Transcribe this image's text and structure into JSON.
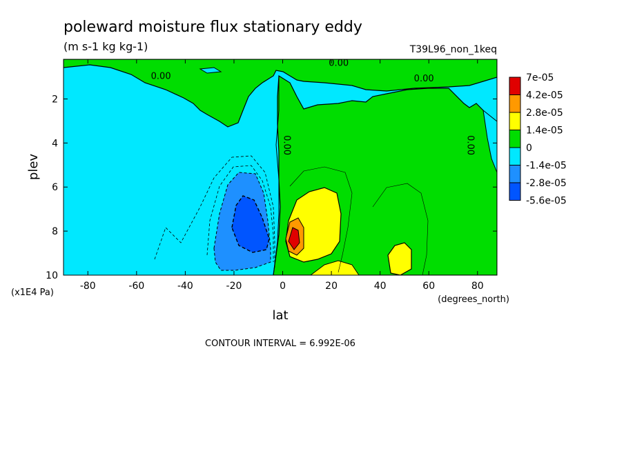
{
  "chart_data": {
    "type": "heatmap",
    "title": "poleward moisture flux stationary eddy",
    "units": "(m s-1 kg kg-1)",
    "dataset": "T39L96_non_1keq",
    "xlabel": "lat",
    "xunits": "(degrees_north)",
    "ylabel": "plev",
    "yunits": "(x1E4 Pa)",
    "xlim": [
      -90,
      88
    ],
    "ylim": [
      10,
      0.2
    ],
    "xticks": [
      -80,
      -60,
      -40,
      -20,
      0,
      20,
      40,
      60,
      80
    ],
    "xtick_labels": [
      "-80",
      "-60",
      "-40",
      "-20",
      "0",
      "20",
      "40",
      "60",
      "80"
    ],
    "yticks": [
      2,
      4,
      6,
      8,
      10
    ],
    "ytick_labels": [
      "2",
      "4",
      "6",
      "8",
      "10"
    ],
    "contour_interval": "CONTOUR INTERVAL = 6.992E-06",
    "contour_labels": [
      {
        "text": "0.00",
        "lat": -50,
        "plev": 1.1
      },
      {
        "text": "0.00",
        "lat": 23,
        "plev": 0.5
      },
      {
        "text": "0.00",
        "lat": 58,
        "plev": 1.2
      },
      {
        "text": "0.00",
        "lat": 0.5,
        "plev": 4.1
      },
      {
        "text": "0.00",
        "lat": 76,
        "plev": 4.1
      }
    ],
    "colorbar": {
      "levels": [
        "7e-05",
        "4.2e-05",
        "2.8e-05",
        "1.4e-05",
        "0",
        "-1.4e-05",
        "-2.8e-05",
        "-5.6e-05"
      ],
      "colors": [
        "#e00000",
        "#ff9900",
        "#ffff00",
        "#00dd00",
        "#00e8ff",
        "#1e90ff",
        "#0055ff"
      ]
    },
    "regions": [
      {
        "level": "0 to 1.4e-05",
        "color": "#00dd00",
        "description": "positive band 0-20N through column; NH subtropics to pole; upper levels"
      },
      {
        "level": "-1.4e-05 to 0",
        "color": "#00e8ff",
        "description": "SH extratropics and NH upper levels"
      },
      {
        "level": "-2.8e-05 to -1.4e-05",
        "color": "#1e90ff",
        "description": "SH subtropical lower troposphere"
      },
      {
        "level": "-5.6e-05 to -2.8e-05",
        "color": "#0055ff",
        "description": "core near 15S, plev 7-8"
      },
      {
        "level": "1.4e-05 to 2.8e-05",
        "color": "#ffff00",
        "description": "near 10N and 50N, lower levels"
      },
      {
        "level": "2.8e-05 to 4.2e-05",
        "color": "#ff9900",
        "description": "near 5N, plev 8.5"
      },
      {
        "level": "4.2e-05 to 7e-05",
        "color": "#e00000",
        "description": "peak near 5N, plev 8.5"
      }
    ]
  }
}
